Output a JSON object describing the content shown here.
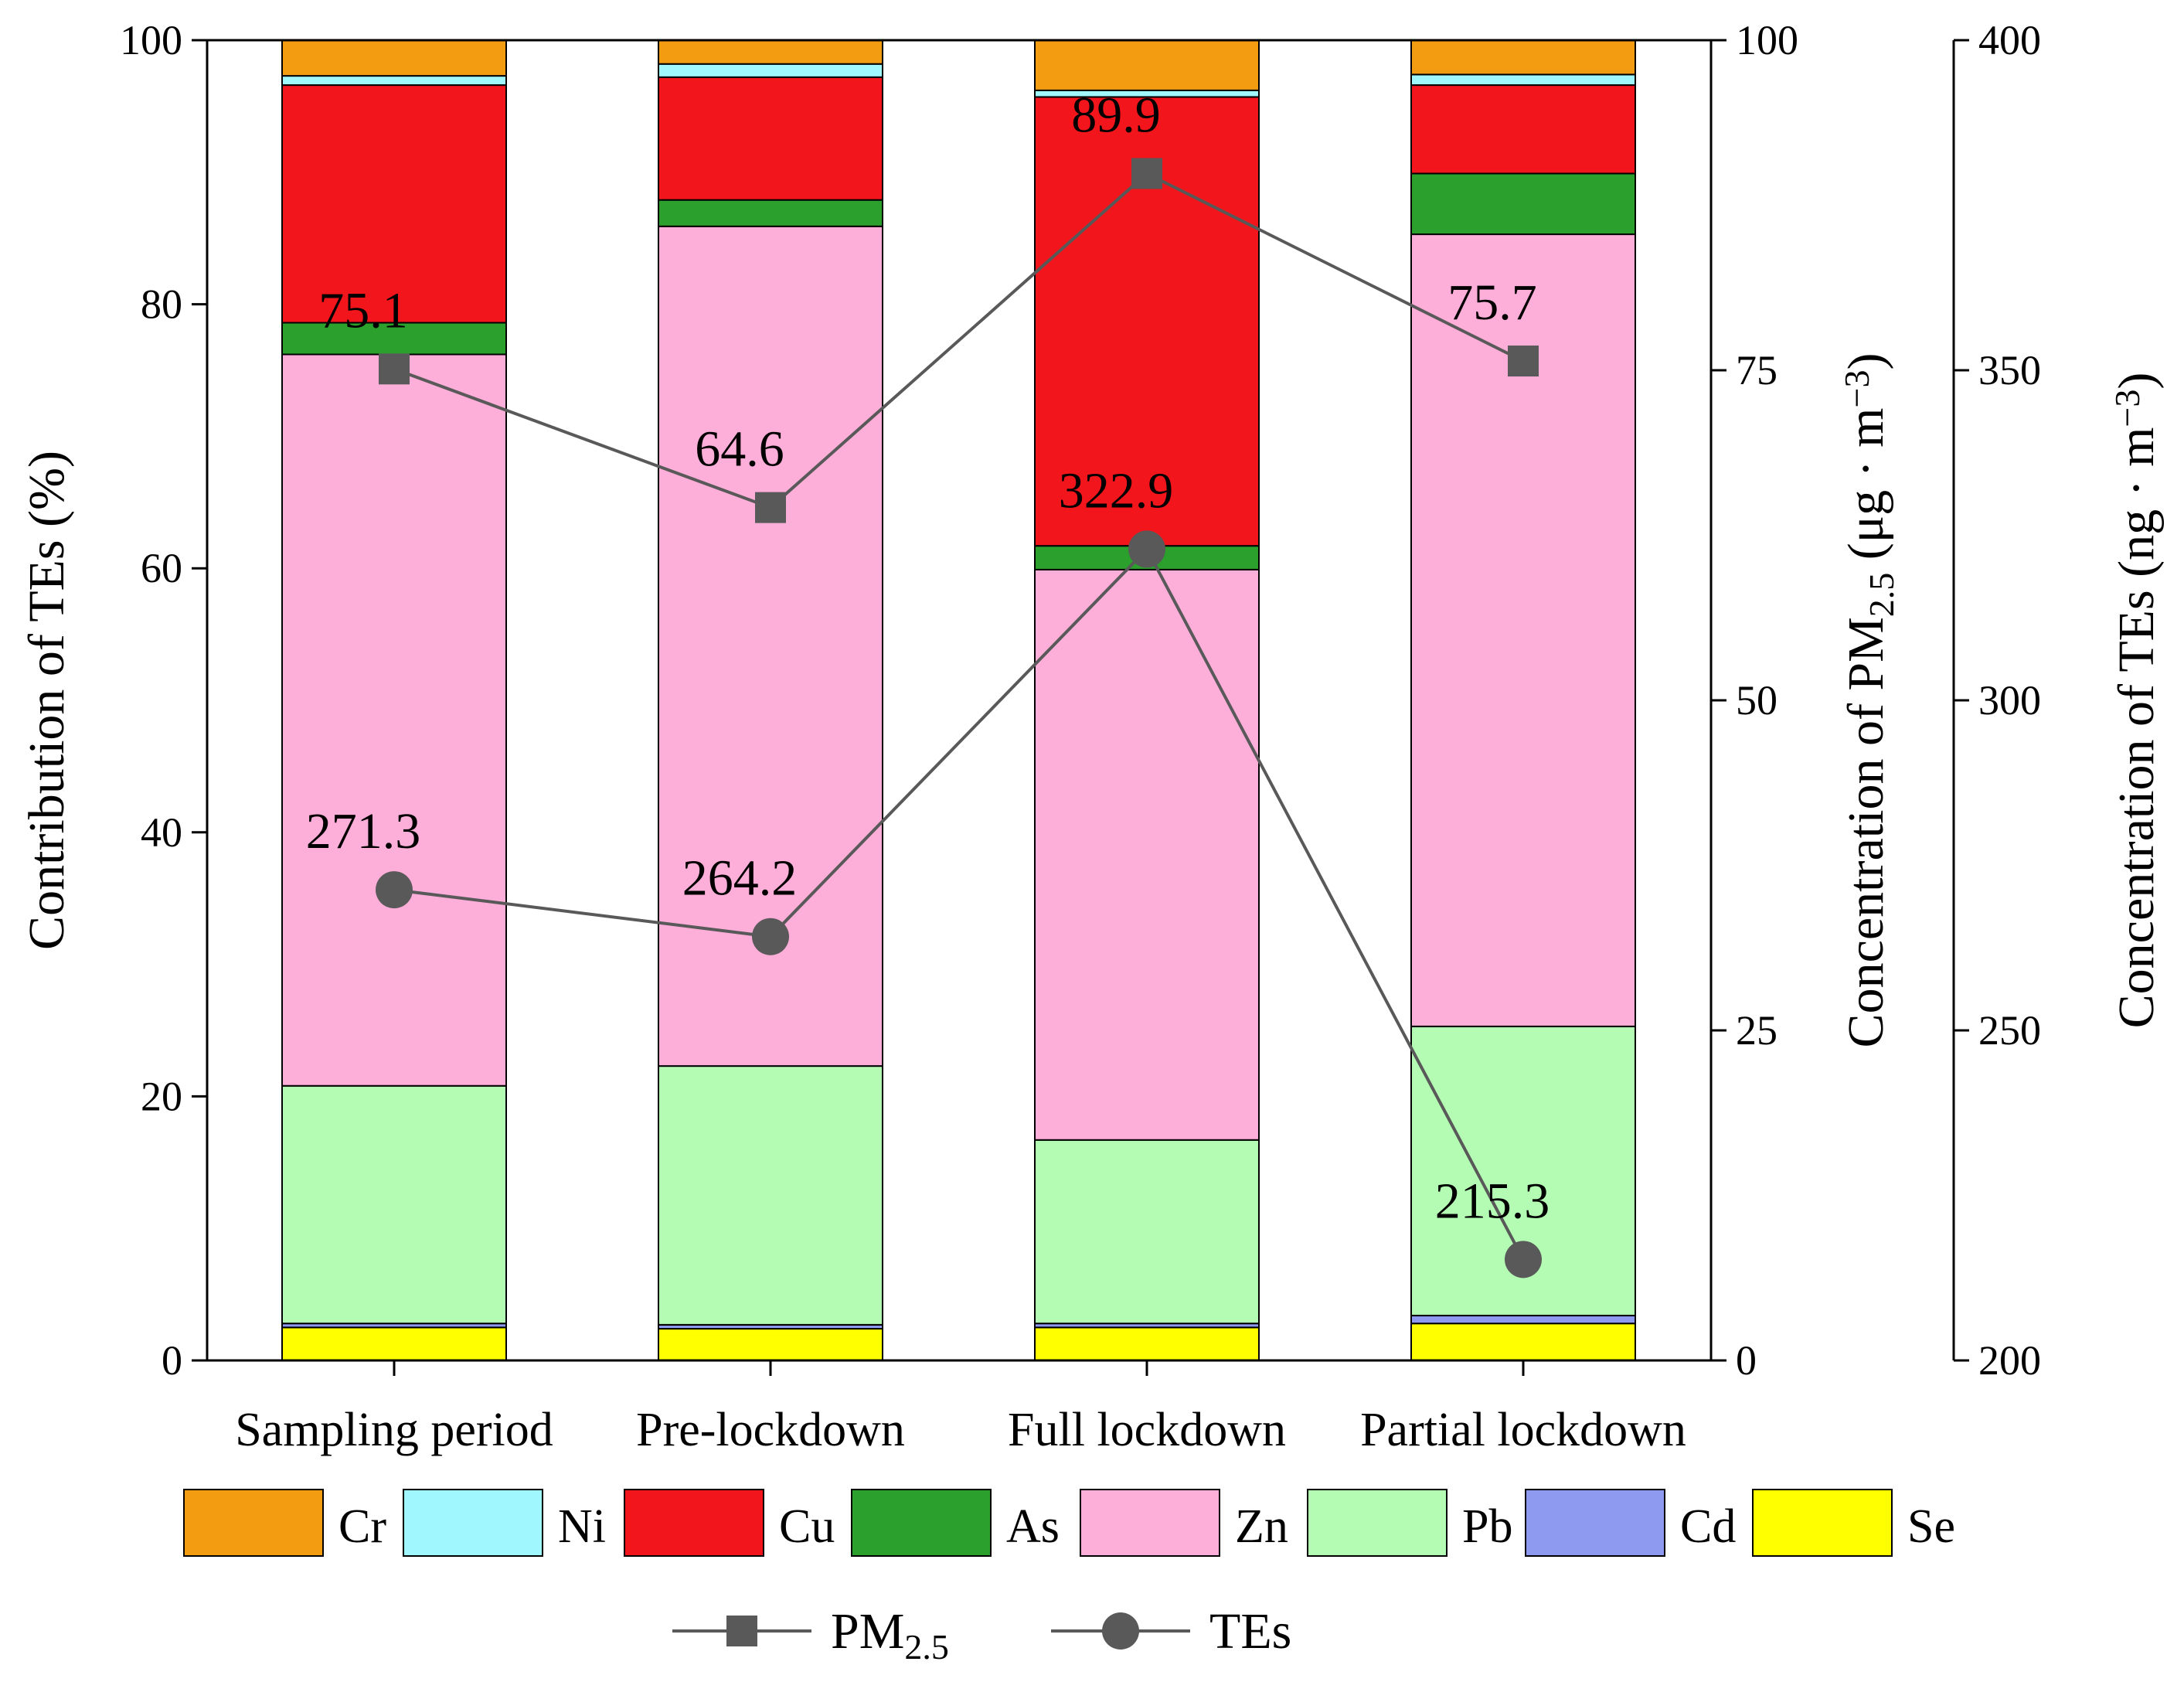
{
  "chart_data": {
    "type": "bar",
    "stacked": true,
    "categories": [
      "Sampling period",
      "Pre-lockdown",
      "Full lockdown",
      "Partial lockdown"
    ],
    "series": [
      {
        "name": "Se",
        "color": "#FFFF00",
        "values": [
          2.5,
          2.4,
          2.5,
          2.8
        ]
      },
      {
        "name": "Cd",
        "color": "#8E9AF0",
        "values": [
          0.3,
          0.3,
          0.3,
          0.6
        ]
      },
      {
        "name": "Pb",
        "color": "#B4FBB4",
        "values": [
          18.0,
          19.6,
          13.9,
          21.9
        ]
      },
      {
        "name": "Zn",
        "color": "#FDAED9",
        "values": [
          55.4,
          63.6,
          43.2,
          60.0
        ]
      },
      {
        "name": "As",
        "color": "#2CA02C",
        "values": [
          2.4,
          2.0,
          1.8,
          4.6
        ]
      },
      {
        "name": "Cu",
        "color": "#F2151B",
        "values": [
          18.0,
          9.3,
          34.0,
          6.7
        ]
      },
      {
        "name": "Ni",
        "color": "#A0F7FD",
        "values": [
          0.7,
          1.0,
          0.5,
          0.8
        ]
      },
      {
        "name": "Cr",
        "color": "#F39C12",
        "values": [
          2.7,
          1.8,
          3.8,
          2.6
        ]
      }
    ],
    "legend_order": [
      "Cr",
      "Ni",
      "Cu",
      "As",
      "Zn",
      "Pb",
      "Cd",
      "Se"
    ],
    "lines": [
      {
        "name": "PM2.5",
        "marker": "square",
        "axis": "pm25",
        "values": [
          75.1,
          64.6,
          89.9,
          75.7
        ],
        "labels": [
          "75.1",
          "64.6",
          "89.9",
          "75.7"
        ]
      },
      {
        "name": "TEs",
        "marker": "circle",
        "axis": "tes",
        "values": [
          271.3,
          264.2,
          322.9,
          215.3
        ],
        "labels": [
          "271.3",
          "264.2",
          "322.9",
          "215.3"
        ]
      }
    ],
    "axes": {
      "left": {
        "title": "Contribution of  TEs (%)",
        "ylim": [
          0,
          100
        ],
        "ticks": [
          "0",
          "20",
          "40",
          "60",
          "80",
          "100"
        ]
      },
      "pm25": {
        "title_prefix": "Concentration of  PM",
        "title_sub": "2.5",
        "title_suffix": " (μg · m",
        "title_sup": "−3",
        "title_close": ")",
        "ylim": [
          0,
          100
        ],
        "ticks": [
          "0",
          "25",
          "50",
          "75",
          "100"
        ]
      },
      "tes": {
        "title_prefix": "Concentration of  TEs (ng · m",
        "title_sup": "−3",
        "title_close": ")",
        "ylim": [
          200,
          400
        ],
        "ticks": [
          "200",
          "250",
          "300",
          "350",
          "400"
        ]
      }
    },
    "line_legend": [
      {
        "label": "PM",
        "sub": "2.5",
        "marker": "square"
      },
      {
        "label": "TEs",
        "sub": "",
        "marker": "circle"
      }
    ]
  },
  "colors": {
    "axis": "#000000",
    "line": "#595959",
    "marker": "#595959",
    "bar_stroke": "#000000"
  }
}
